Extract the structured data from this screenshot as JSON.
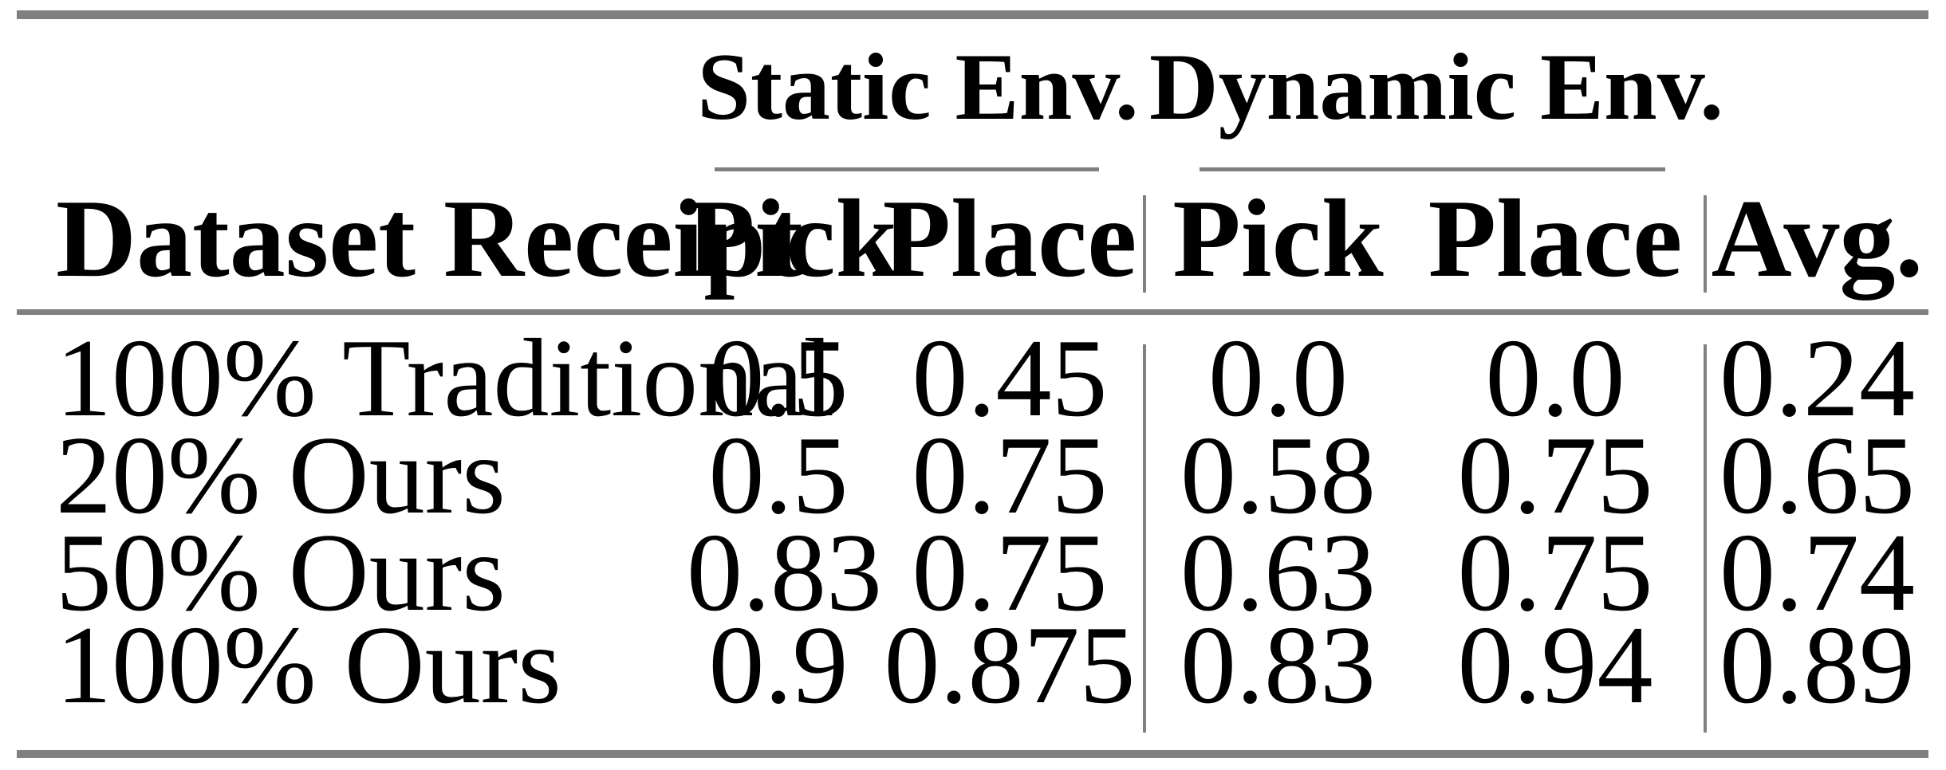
{
  "table": {
    "header": {
      "dataset_col": "Dataset Receipt",
      "groups": [
        {
          "label": "Static Env.",
          "sub": [
            "Pick",
            "Place"
          ]
        },
        {
          "label": "Dynamic Env.",
          "sub": [
            "Pick",
            "Place"
          ]
        }
      ],
      "avg": "Avg."
    },
    "rows": [
      {
        "label": "100% Traditional",
        "values": [
          "0.5",
          "0.45",
          "0.0",
          "0.0",
          "0.24"
        ]
      },
      {
        "label": "20% Ours",
        "values": [
          "0.5",
          "0.75",
          "0.58",
          "0.75",
          "0.65"
        ]
      },
      {
        "label": "50% Ours",
        "values": [
          "0.83",
          "0.75",
          "0.63",
          "0.75",
          "0.74"
        ]
      },
      {
        "label": "100% Ours",
        "values": [
          "0.9",
          "0.875",
          "0.83",
          "0.94",
          "0.89"
        ]
      }
    ]
  },
  "colors": {
    "rule_gray": "#808080",
    "text": "#000000",
    "background": "#ffffff"
  },
  "chart_data": {
    "type": "table",
    "title": "",
    "columns": [
      "Dataset Receipt",
      "Static Env. Pick",
      "Static Env. Place",
      "Dynamic Env. Pick",
      "Dynamic Env. Place",
      "Avg."
    ],
    "rows": [
      [
        "100% Traditional",
        0.5,
        0.45,
        0.0,
        0.0,
        0.24
      ],
      [
        "20% Ours",
        0.5,
        0.75,
        0.58,
        0.75,
        0.65
      ],
      [
        "50% Ours",
        0.83,
        0.75,
        0.63,
        0.75,
        0.74
      ],
      [
        "100% Ours",
        0.9,
        0.875,
        0.83,
        0.94,
        0.89
      ]
    ]
  }
}
